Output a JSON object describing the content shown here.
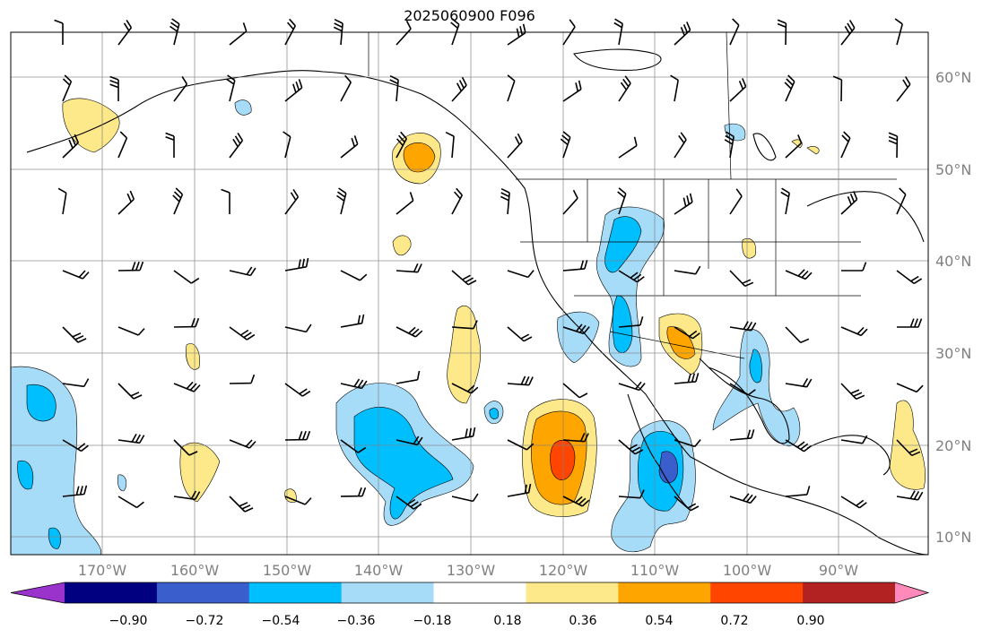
{
  "title": "2025060900 F096",
  "map": {
    "lat_labels": [
      "60°N",
      "50°N",
      "40°N",
      "30°N",
      "20°N",
      "10°N"
    ],
    "lon_labels": [
      "170°W",
      "160°W",
      "150°W",
      "140°W",
      "130°W",
      "120°W",
      "110°W",
      "100°W",
      "90°W"
    ]
  },
  "colorbar": {
    "ticks": [
      "−0.90",
      "−0.72",
      "−0.54",
      "−0.36",
      "−0.18",
      "0.18",
      "0.36",
      "0.54",
      "0.72",
      "0.90"
    ],
    "colors": [
      "#9933cc",
      "#000080",
      "#3a5fcd",
      "#00bfff",
      "#a6dcf8",
      "#ffffff",
      "#fde98a",
      "#ffa500",
      "#ff4500",
      "#b22222",
      "#ff89ba"
    ]
  }
}
